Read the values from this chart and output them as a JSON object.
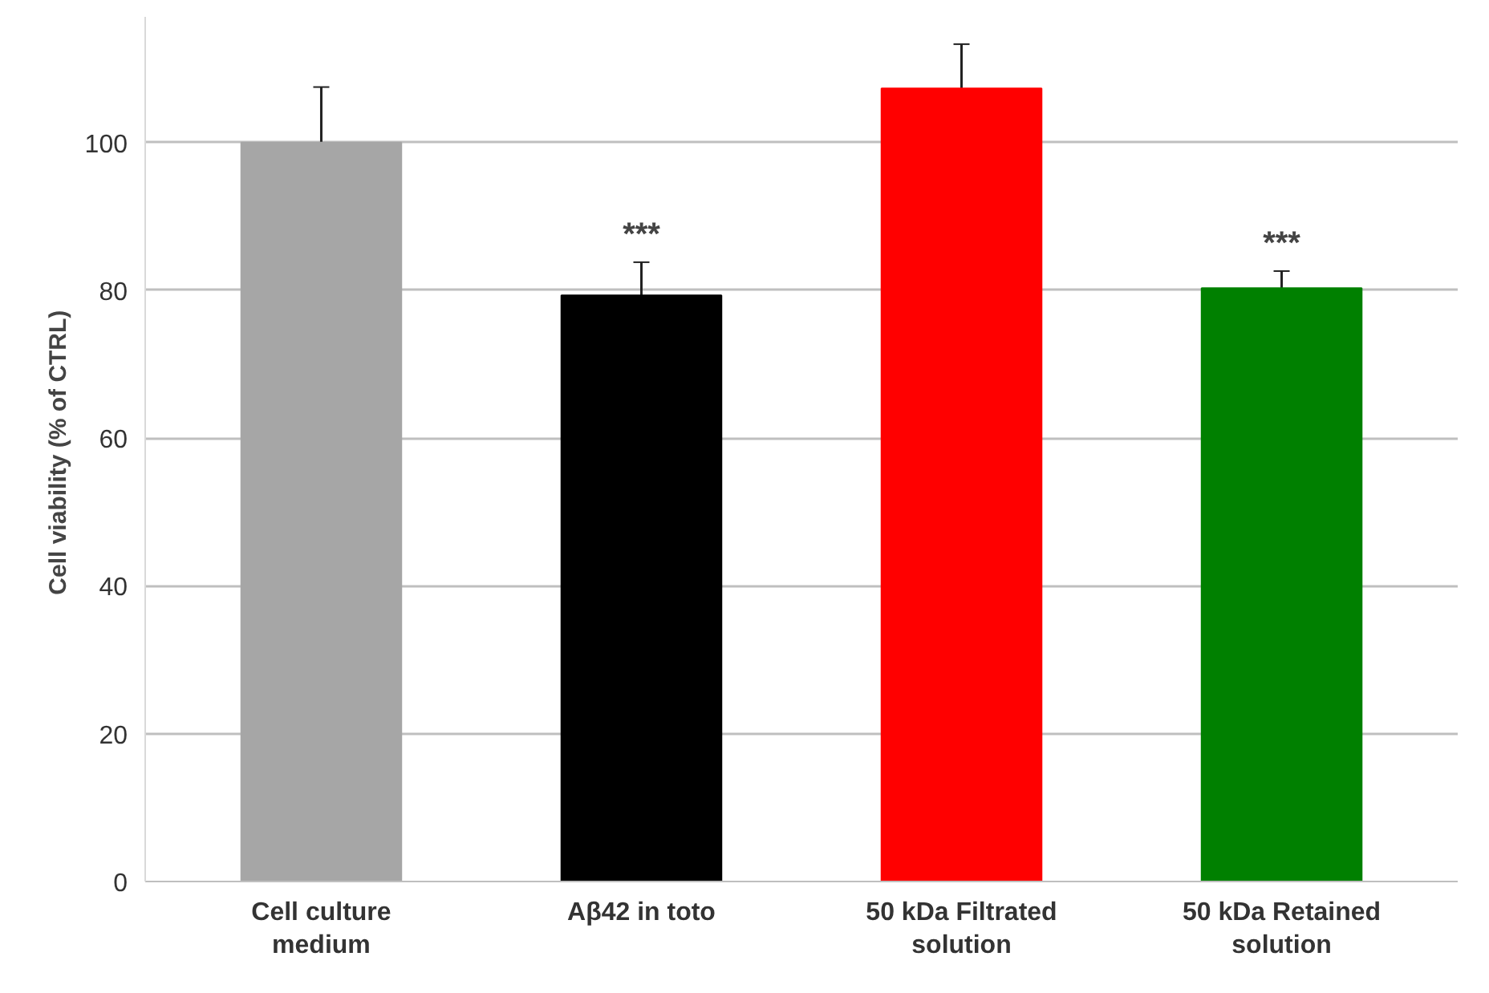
{
  "chart_data": {
    "type": "bar",
    "ylabel": "Cell viability  (% of CTRL)",
    "categories": [
      "Cell culture\nmedium",
      "Aβ42 in toto",
      "50 kDa Filtrated\nsolution",
      "50 kDa Retained\nsolution"
    ],
    "values": [
      100,
      79.3,
      107.3,
      80.3
    ],
    "colors": [
      "#a6a6a6",
      "#000000",
      "#ff0000",
      "#008000"
    ],
    "errors": [
      7.5,
      4.5,
      6,
      2.3
    ],
    "ylim": [
      0,
      117
    ],
    "yticks": [
      0,
      20,
      40,
      60,
      80,
      100
    ],
    "grid": "y",
    "value_labels": [
      null,
      "***",
      null,
      "***"
    ]
  }
}
